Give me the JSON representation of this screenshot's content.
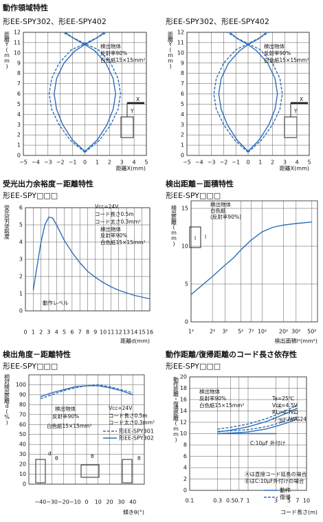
{
  "chart_data": [
    {
      "type": "line",
      "subtitle": "形EE-SPY302、形EE-SPY402",
      "title": "動作領域特性",
      "ylabel": "距離Y(mm)",
      "xlabel": "距離X(mm)",
      "xlim": [
        -5,
        5
      ],
      "ylim": [
        0,
        12
      ],
      "grid": true,
      "xticks": [
        {
          "value": -5,
          "label": "−5"
        },
        {
          "value": -4,
          "label": "−4"
        },
        {
          "value": -3,
          "label": "−3"
        },
        {
          "value": -2,
          "label": "−2"
        },
        {
          "value": -1,
          "label": "−1"
        },
        0,
        1,
        2,
        3,
        4,
        5
      ],
      "yticks": [
        0,
        1,
        2,
        3,
        4,
        5,
        6,
        7,
        8,
        9,
        10,
        11,
        12
      ],
      "annotations": [
        "検出物体",
        "反射率90%",
        "白色紙15×15mm²",
        "X",
        "Y"
      ],
      "series": [
        {
          "color": "#2b6cb8",
          "style": "solid",
          "x": [
            0,
            -1.0,
            -1.8,
            -2.3,
            -2.5,
            -2.3,
            -1.7,
            -0.8,
            0,
            0.9,
            1.6
          ],
          "values": [
            0.4,
            1.5,
            3,
            4.5,
            6,
            7.5,
            9,
            10.2,
            10.8,
            11.4,
            12
          ]
        },
        {
          "color": "#2b6cb8",
          "style": "solid",
          "x": [
            0,
            1.0,
            1.8,
            2.3,
            2.5,
            2.3,
            1.7,
            0.8,
            0,
            -0.9,
            -1.6
          ],
          "values": [
            0.4,
            1.5,
            3,
            4.5,
            6,
            7.5,
            9,
            10.2,
            10.8,
            11.4,
            12
          ]
        },
        {
          "color": "#2b6cb8",
          "style": "dashed",
          "x": [
            0,
            -1.2,
            -2.1,
            -2.7,
            -2.9,
            -2.7,
            -2.1,
            -1.1,
            0,
            1.0,
            1.8
          ],
          "values": [
            0.3,
            1.5,
            3,
            4.5,
            6,
            7.5,
            9,
            10.3,
            10.9,
            11.5,
            12
          ]
        },
        {
          "color": "#2b6cb8",
          "style": "dashed",
          "x": [
            0,
            1.2,
            2.1,
            2.7,
            2.9,
            2.7,
            2.1,
            1.1,
            0,
            -1.0,
            -1.8
          ],
          "values": [
            0.3,
            1.5,
            3,
            4.5,
            6,
            7.5,
            9,
            10.3,
            10.9,
            11.5,
            12
          ]
        }
      ]
    },
    {
      "type": "line",
      "subtitle": "形EE-SPY302、形EE-SPY402",
      "ylabel": "距離Y(mm)",
      "xlabel": "距離X(mm)",
      "xlim": [
        -5,
        5
      ],
      "ylim": [
        0,
        12
      ],
      "grid": true,
      "xticks": [
        {
          "value": -5,
          "label": "−5"
        },
        {
          "value": -4,
          "label": "−4"
        },
        {
          "value": -3,
          "label": "−3"
        },
        {
          "value": -2,
          "label": "−2"
        },
        {
          "value": -1,
          "label": "−1"
        },
        0,
        1,
        2,
        3,
        4,
        5
      ],
      "yticks": [
        0,
        1,
        2,
        3,
        4,
        5,
        6,
        7,
        8,
        9,
        10,
        11,
        12
      ],
      "annotations": [
        "検出物体",
        "反射率90%",
        "白色紙15×15mm²",
        "X",
        "Y"
      ],
      "series": [
        {
          "color": "#2b6cb8",
          "style": "solid",
          "x": [
            0,
            -0.9,
            -1.7,
            -2.2,
            -2.4,
            -2.2,
            -1.6,
            -0.7,
            0,
            0.9,
            1.5
          ],
          "values": [
            0.4,
            1.5,
            3,
            4.5,
            6,
            7.5,
            9,
            10.2,
            10.8,
            11.4,
            12
          ]
        },
        {
          "color": "#2b6cb8",
          "style": "solid",
          "x": [
            0,
            0.9,
            1.7,
            2.2,
            2.4,
            2.2,
            1.6,
            0.7,
            0,
            -0.9,
            -1.5
          ],
          "values": [
            0.4,
            1.5,
            3,
            4.5,
            6,
            7.5,
            9,
            10.2,
            10.8,
            11.4,
            12
          ]
        },
        {
          "color": "#2b6cb8",
          "style": "dashed",
          "x": [
            0,
            -1.1,
            -2.0,
            -2.6,
            -2.8,
            -2.6,
            -2.0,
            -1.0,
            0,
            1.0,
            1.7
          ],
          "values": [
            0.3,
            1.5,
            3,
            4.5,
            6,
            7.5,
            9,
            10.3,
            10.9,
            11.5,
            12
          ]
        },
        {
          "color": "#2b6cb8",
          "style": "dashed",
          "x": [
            0,
            1.1,
            2.0,
            2.6,
            2.8,
            2.6,
            2.0,
            1.0,
            0,
            -1.0,
            -1.7
          ],
          "values": [
            0.3,
            1.5,
            3,
            4.5,
            6,
            7.5,
            9,
            10.3,
            10.9,
            11.5,
            12
          ]
        }
      ]
    },
    {
      "type": "line",
      "title": "受光出力余裕度－距離特性",
      "subtitle": "形EE-SPY□□□",
      "ylabel": "受光出力余裕度",
      "xlabel": "距離d(mm)",
      "xlim": [
        0,
        16
      ],
      "ylim": [
        0,
        6
      ],
      "grid": true,
      "xticks": [
        0,
        1,
        2,
        3,
        4,
        5,
        6,
        7,
        8,
        9,
        10,
        11,
        12,
        13,
        14,
        15,
        16
      ],
      "yticks": [
        0,
        1,
        2,
        3,
        4,
        5,
        6
      ],
      "annotations": [
        "Vcc=24V",
        "コード長さ0.5m",
        "コード太さ0.3mm²",
        "検出物体",
        "反射率90%",
        "白色紙15×15mm²",
        "動作レベル"
      ],
      "series": [
        {
          "color": "#2b6cb8",
          "style": "solid",
          "x": [
            1,
            1.5,
            2,
            2.5,
            3,
            3.5,
            4,
            5,
            6,
            7,
            8,
            9,
            10,
            11,
            12,
            13,
            14,
            15,
            16
          ],
          "values": [
            1.2,
            2.6,
            4.0,
            5.0,
            5.45,
            5.4,
            5.0,
            4.1,
            3.4,
            2.8,
            2.3,
            1.95,
            1.65,
            1.4,
            1.2,
            1.05,
            0.9,
            0.8,
            0.7
          ]
        }
      ]
    },
    {
      "type": "line",
      "title": "検出距離－面積特性",
      "subtitle": "形EE-SPY□□□",
      "ylabel": "検出距離(mm)",
      "xlabel": "検出面積l²(mm²)",
      "xscale": "log",
      "xlim": [
        1,
        3600
      ],
      "ylim": [
        0,
        16
      ],
      "grid": true,
      "xticks": [
        {
          "value": 1,
          "label": "1²"
        },
        {
          "value": 4,
          "label": "2²"
        },
        {
          "value": 9,
          "label": "3²"
        },
        {
          "value": 25,
          "label": "5²"
        },
        {
          "value": 49,
          "label": "7²"
        },
        {
          "value": 100,
          "label": "10²"
        },
        {
          "value": 400,
          "label": "20²"
        },
        {
          "value": 900,
          "label": "30²"
        },
        {
          "value": 2500,
          "label": "50²"
        }
      ],
      "yticks": [
        0,
        5,
        10,
        15
      ],
      "annotations": [
        "検出物体",
        "白色紙",
        "(反射率90%)",
        "l",
        "l"
      ],
      "series": [
        {
          "color": "#2b6cb8",
          "style": "solid",
          "x": [
            1,
            2,
            4,
            9,
            16,
            25,
            49,
            100,
            200,
            400,
            900,
            2500
          ],
          "values": [
            3.6,
            4.8,
            6.0,
            7.5,
            8.5,
            9.5,
            10.8,
            11.9,
            12.5,
            12.8,
            13.0,
            13.2
          ]
        }
      ]
    },
    {
      "type": "line",
      "title": "検出角度－距離特性",
      "subtitle": "形EE-SPY□□□",
      "ylabel": "相対検出距離d(%)",
      "xlabel": "傾きθ(°)",
      "xlim": [
        -50,
        50
      ],
      "ylim": [
        0,
        110
      ],
      "grid": true,
      "xticks": [
        {
          "value": -40,
          "label": "−40"
        },
        {
          "value": -30,
          "label": "−30"
        },
        {
          "value": -20,
          "label": "−20"
        },
        {
          "value": -10,
          "label": "−10"
        },
        0,
        10,
        20,
        30,
        40
      ],
      "yticks": [
        0,
        10,
        20,
        30,
        40,
        50,
        60,
        70,
        80,
        90,
        100
      ],
      "annotations": [
        "Vcc=24V",
        "コード長さ0.5m",
        "コード太さ0.3mm²",
        "検出物体",
        "反射率90%",
        "白色紙15×15mm²",
        "d",
        "θ",
        "θ",
        "θ"
      ],
      "series": [
        {
          "name": "形EE-SPY301",
          "color": "#2b6cb8",
          "style": "dashed",
          "x": [
            -40,
            -30,
            -20,
            -10,
            0,
            10,
            20,
            30,
            40
          ],
          "values": [
            86,
            90,
            94,
            97,
            99,
            100,
            98,
            95,
            92
          ]
        },
        {
          "name": "形EE-SPY302",
          "color": "#2b6cb8",
          "style": "solid",
          "x": [
            -40,
            -30,
            -20,
            -10,
            0,
            10,
            20,
            30,
            40
          ],
          "values": [
            88,
            92,
            95,
            98,
            99,
            99,
            97,
            94,
            90
          ]
        }
      ]
    },
    {
      "type": "line",
      "title": "動作距離/復帰距離のコード長さ依存性",
      "subtitle": "形EE-SPY□□□",
      "ylabel": "動作距離・復帰距離(mm)",
      "xlabel": "コード長さ(m)",
      "xscale": "log",
      "xlim": [
        0.1,
        10
      ],
      "ylim": [
        0,
        20
      ],
      "grid": true,
      "xticks": [
        0.1,
        0.3,
        0.5,
        0.7,
        1,
        3,
        5,
        7,
        10
      ],
      "yticks": [
        0,
        2,
        4,
        6,
        8,
        10,
        12,
        14,
        16,
        18,
        20
      ],
      "annotations": [
        "Ta=25℃",
        "Vcc=4.5V",
        "RL=4.7kΩ",
        "リードAWG24",
        "検出物体",
        "反射率90%",
        "白色紙15×15mm²",
        "C:10μF 外付け",
        "Ⓐは直接コード延長の場合",
        "ⒷはC:10μF外付けの場合",
        "Ⓐ",
        "Ⓑ"
      ],
      "series": [
        {
          "name": "動作",
          "color": "#2b6cb8",
          "style": "solid",
          "x": [
            0.3,
            0.5,
            1,
            2,
            3,
            5,
            7
          ],
          "values": [
            10.3,
            10.6,
            11.2,
            12.1,
            12.8,
            13.8,
            14.5
          ]
        },
        {
          "name": "復帰",
          "color": "#2b6cb8",
          "style": "dashed",
          "x": [
            0.3,
            0.5,
            1,
            2,
            3,
            5,
            7
          ],
          "values": [
            10.8,
            11.1,
            11.7,
            12.6,
            13.3,
            14.3,
            15.0
          ]
        },
        {
          "color": "#2b6cb8",
          "style": "solid",
          "x": [
            0.3,
            0.5,
            1,
            2,
            3,
            5,
            7
          ],
          "values": [
            10.0,
            10.1,
            10.3,
            10.8,
            11.3,
            12.0,
            12.6
          ]
        },
        {
          "color": "#2b6cb8",
          "style": "dashed",
          "x": [
            0.3,
            0.5,
            1,
            2,
            3,
            5,
            7
          ],
          "values": [
            10.4,
            10.5,
            10.7,
            11.2,
            11.7,
            12.4,
            13.0
          ]
        },
        {
          "color": "#2b6cb8",
          "style": "solid",
          "x": [
            0.3,
            3
          ],
          "values": [
            10,
            10
          ]
        }
      ]
    }
  ]
}
